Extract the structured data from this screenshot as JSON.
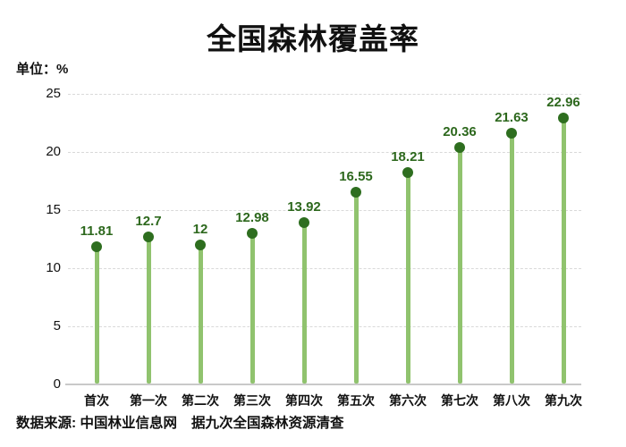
{
  "title": "全国森林覆盖率",
  "unit_label": "单位：%",
  "source": {
    "left": "数据来源: 中国林业信息网",
    "right": "据九次全国森林资源清查"
  },
  "colors": {
    "dot": "#2e6e1f",
    "stem": "#90c36e",
    "value_label": "#2d681d",
    "grid": "#d9d9d9",
    "axis": "#c9c9c9",
    "text": "#111111"
  },
  "chart_data": {
    "type": "bar",
    "variant": "lollipop",
    "title": "全国森林覆盖率",
    "unit": "单位：%",
    "categories": [
      "首次",
      "第一次",
      "第二次",
      "第三次",
      "第四次",
      "第五次",
      "第六次",
      "第七次",
      "第八次",
      "第九次"
    ],
    "values": [
      11.81,
      12.7,
      12,
      12.98,
      13.92,
      16.55,
      18.21,
      20.36,
      21.63,
      22.96
    ],
    "value_labels": [
      "11.81",
      "12.7",
      "12",
      "12.98",
      "13.92",
      "16.55",
      "18.21",
      "20.36",
      "21.63",
      "22.96"
    ],
    "xlabel": "",
    "ylabel": "%",
    "ylim": [
      0,
      25
    ],
    "yticks": [
      0,
      5,
      10,
      15,
      20,
      25
    ],
    "grid": "horizontal-dashed",
    "legend": "none"
  }
}
